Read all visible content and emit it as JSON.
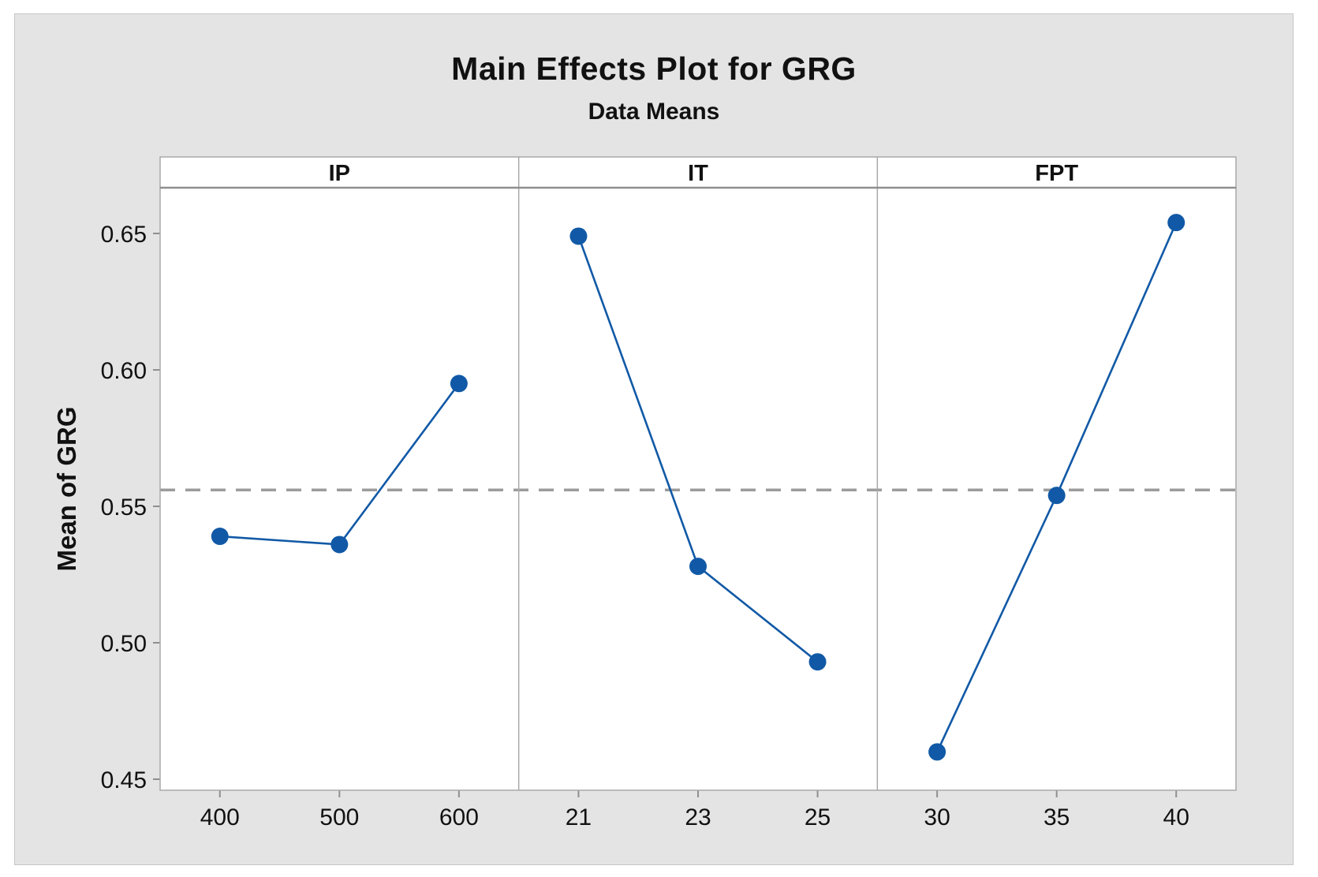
{
  "chart_data": {
    "type": "line",
    "title": "Main Effects Plot for GRG",
    "subtitle": "Data Means",
    "ylabel": "Mean of GRG",
    "yticks": [
      0.65,
      0.6,
      0.55,
      0.5,
      0.45
    ],
    "ylim": [
      0.446,
      0.667
    ],
    "reference_line": {
      "value": 0.556,
      "style": "dashed",
      "color": "#9B9B9B"
    },
    "panels": [
      {
        "label": "IP",
        "categories": [
          "400",
          "500",
          "600"
        ],
        "values": [
          0.539,
          0.536,
          0.595
        ]
      },
      {
        "label": "IT",
        "categories": [
          "21",
          "23",
          "25"
        ],
        "values": [
          0.649,
          0.528,
          0.493
        ]
      },
      {
        "label": "FPT",
        "categories": [
          "30",
          "35",
          "40"
        ],
        "values": [
          0.46,
          0.554,
          0.654
        ]
      }
    ],
    "series_color": "#1159A6",
    "marker": "circle",
    "grid": false,
    "legend": false,
    "layout": "three-panel-shared-y"
  },
  "colors": {
    "graph_background": "#E4E4E4",
    "plot_background": "#FFFFFF",
    "panel_border": "#A9A9A9",
    "header_separator": "#8F8F8F",
    "text": "#111111"
  }
}
